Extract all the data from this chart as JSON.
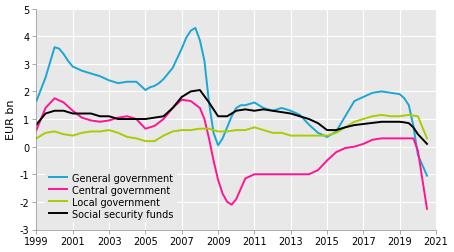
{
  "title": "",
  "ylabel": "EUR bn",
  "xlim": [
    1999,
    2021
  ],
  "ylim": [
    -3,
    5
  ],
  "yticks": [
    -3,
    -2,
    -1,
    0,
    1,
    2,
    3,
    4,
    5
  ],
  "xticks": [
    1999,
    2001,
    2003,
    2005,
    2007,
    2009,
    2011,
    2013,
    2015,
    2017,
    2019,
    2021
  ],
  "colors": {
    "general": "#1AA7D4",
    "central": "#FF1493",
    "local": "#AACC00",
    "social": "#000000"
  },
  "legend": [
    {
      "label": "General government",
      "color": "#1AA7D4"
    },
    {
      "label": "Central government",
      "color": "#FF1493"
    },
    {
      "label": "Local government",
      "color": "#AACC00"
    },
    {
      "label": "Social security funds",
      "color": "#000000"
    }
  ],
  "general_government": {
    "x": [
      1999.0,
      1999.5,
      2000.0,
      2000.25,
      2000.5,
      2000.75,
      2001.0,
      2001.5,
      2002.0,
      2002.5,
      2003.0,
      2003.5,
      2004.0,
      2004.5,
      2005.0,
      2005.25,
      2005.5,
      2005.75,
      2006.0,
      2006.5,
      2007.0,
      2007.25,
      2007.5,
      2007.75,
      2008.0,
      2008.25,
      2008.5,
      2008.75,
      2009.0,
      2009.25,
      2009.5,
      2009.75,
      2010.0,
      2010.25,
      2010.5,
      2010.75,
      2011.0,
      2011.25,
      2011.5,
      2011.75,
      2012.0,
      2012.5,
      2013.0,
      2013.5,
      2014.0,
      2014.5,
      2015.0,
      2015.5,
      2016.0,
      2016.5,
      2017.0,
      2017.5,
      2018.0,
      2018.5,
      2019.0,
      2019.25,
      2019.5,
      2019.75,
      2020.0,
      2020.5
    ],
    "y": [
      1.65,
      2.5,
      3.6,
      3.55,
      3.35,
      3.1,
      2.9,
      2.75,
      2.65,
      2.55,
      2.4,
      2.3,
      2.35,
      2.35,
      2.05,
      2.15,
      2.2,
      2.3,
      2.45,
      2.85,
      3.55,
      3.95,
      4.2,
      4.3,
      3.85,
      3.1,
      1.6,
      0.5,
      0.05,
      0.3,
      0.7,
      1.1,
      1.4,
      1.5,
      1.5,
      1.55,
      1.6,
      1.5,
      1.4,
      1.35,
      1.3,
      1.4,
      1.3,
      1.15,
      0.8,
      0.5,
      0.35,
      0.55,
      1.1,
      1.65,
      1.8,
      1.95,
      2.0,
      1.95,
      1.9,
      1.75,
      1.5,
      0.75,
      -0.3,
      -1.05
    ]
  },
  "central_government": {
    "x": [
      1999.0,
      1999.5,
      2000.0,
      2000.5,
      2001.0,
      2001.5,
      2002.0,
      2002.5,
      2003.0,
      2003.5,
      2004.0,
      2004.5,
      2005.0,
      2005.5,
      2006.0,
      2006.5,
      2007.0,
      2007.5,
      2008.0,
      2008.25,
      2008.5,
      2008.75,
      2009.0,
      2009.25,
      2009.5,
      2009.75,
      2010.0,
      2010.5,
      2011.0,
      2011.5,
      2012.0,
      2012.5,
      2013.0,
      2013.5,
      2014.0,
      2014.5,
      2015.0,
      2015.5,
      2016.0,
      2016.5,
      2017.0,
      2017.5,
      2018.0,
      2018.5,
      2019.0,
      2019.25,
      2019.5,
      2019.75,
      2020.0,
      2020.5
    ],
    "y": [
      0.6,
      1.4,
      1.75,
      1.6,
      1.3,
      1.05,
      0.95,
      0.9,
      0.95,
      1.05,
      1.1,
      1.0,
      0.65,
      0.75,
      1.0,
      1.4,
      1.7,
      1.65,
      1.4,
      1.0,
      0.3,
      -0.5,
      -1.2,
      -1.7,
      -2.0,
      -2.1,
      -1.9,
      -1.15,
      -1.0,
      -1.0,
      -1.0,
      -1.0,
      -1.0,
      -1.0,
      -1.0,
      -0.85,
      -0.5,
      -0.2,
      -0.05,
      0.0,
      0.1,
      0.25,
      0.3,
      0.3,
      0.3,
      0.3,
      0.3,
      0.3,
      -0.15,
      -2.25
    ]
  },
  "local_government": {
    "x": [
      1999.0,
      1999.5,
      2000.0,
      2000.5,
      2001.0,
      2001.5,
      2002.0,
      2002.5,
      2003.0,
      2003.5,
      2004.0,
      2004.5,
      2005.0,
      2005.5,
      2006.0,
      2006.5,
      2007.0,
      2007.5,
      2008.0,
      2008.5,
      2009.0,
      2009.5,
      2010.0,
      2010.5,
      2011.0,
      2011.5,
      2012.0,
      2012.5,
      2013.0,
      2013.5,
      2014.0,
      2014.5,
      2015.0,
      2015.5,
      2016.0,
      2016.5,
      2017.0,
      2017.5,
      2018.0,
      2018.5,
      2019.0,
      2019.5,
      2020.0,
      2020.5
    ],
    "y": [
      0.3,
      0.5,
      0.55,
      0.45,
      0.4,
      0.5,
      0.55,
      0.55,
      0.6,
      0.5,
      0.35,
      0.3,
      0.2,
      0.2,
      0.4,
      0.55,
      0.6,
      0.6,
      0.65,
      0.65,
      0.55,
      0.55,
      0.6,
      0.6,
      0.7,
      0.6,
      0.5,
      0.5,
      0.4,
      0.4,
      0.4,
      0.4,
      0.4,
      0.5,
      0.7,
      0.9,
      1.0,
      1.1,
      1.15,
      1.1,
      1.1,
      1.15,
      1.1,
      0.3
    ]
  },
  "social_security": {
    "x": [
      1999.0,
      1999.5,
      2000.0,
      2000.5,
      2001.0,
      2001.5,
      2002.0,
      2002.5,
      2003.0,
      2003.5,
      2004.0,
      2004.5,
      2005.0,
      2005.5,
      2006.0,
      2006.5,
      2007.0,
      2007.5,
      2008.0,
      2008.5,
      2009.0,
      2009.5,
      2010.0,
      2010.5,
      2011.0,
      2011.5,
      2012.0,
      2012.5,
      2013.0,
      2013.5,
      2014.0,
      2014.5,
      2015.0,
      2015.5,
      2016.0,
      2016.5,
      2017.0,
      2017.5,
      2018.0,
      2018.5,
      2019.0,
      2019.25,
      2019.5,
      2019.75,
      2020.0,
      2020.5
    ],
    "y": [
      0.8,
      1.2,
      1.3,
      1.3,
      1.2,
      1.2,
      1.2,
      1.1,
      1.1,
      1.0,
      1.0,
      1.0,
      1.0,
      1.05,
      1.1,
      1.4,
      1.8,
      2.0,
      2.05,
      1.6,
      1.1,
      1.1,
      1.3,
      1.35,
      1.3,
      1.35,
      1.3,
      1.25,
      1.2,
      1.1,
      1.0,
      0.85,
      0.6,
      0.6,
      0.7,
      0.78,
      0.82,
      0.86,
      0.9,
      0.9,
      0.9,
      0.88,
      0.85,
      0.7,
      0.45,
      0.1
    ]
  },
  "bg_color": "#E8E8E8",
  "fig_bg": "#FFFFFF",
  "grid_color": "#FFFFFF",
  "linewidth": 1.4,
  "tick_fontsize": 7,
  "ylabel_fontsize": 8,
  "legend_fontsize": 7
}
